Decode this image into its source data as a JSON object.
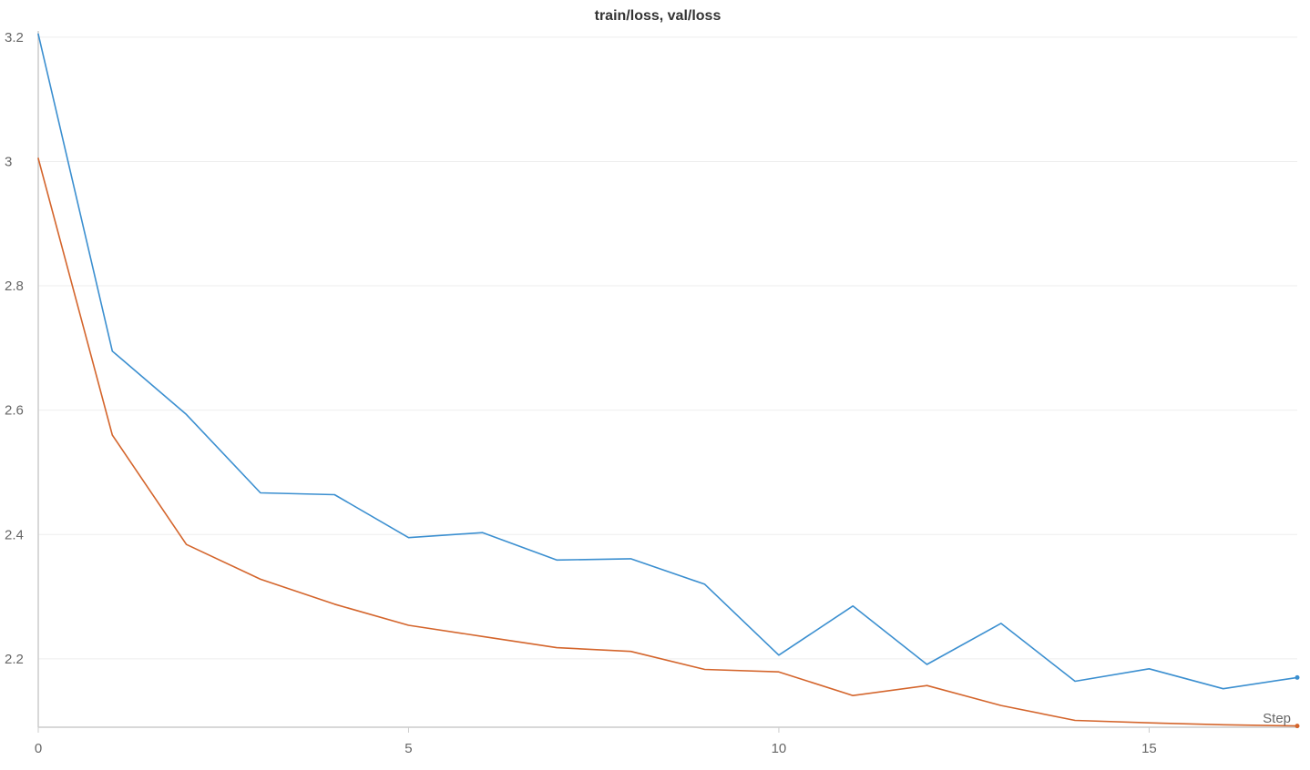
{
  "chart_data": {
    "type": "line",
    "title": "train/loss, val/loss",
    "xlabel": "Step",
    "ylabel": "",
    "xlim": [
      0,
      17
    ],
    "ylim": [
      2.09,
      3.21
    ],
    "x_ticks": [
      0,
      5,
      10,
      15
    ],
    "y_ticks": [
      2.2,
      2.4,
      2.6,
      2.8,
      3,
      3.2
    ],
    "grid": true,
    "x": [
      0,
      1,
      2,
      3,
      4,
      5,
      6,
      7,
      8,
      9,
      10,
      11,
      12,
      13,
      14,
      15,
      16,
      17
    ],
    "series": [
      {
        "color": "#3b8fd0",
        "values": [
          3.205,
          2.695,
          2.593,
          2.467,
          2.464,
          2.395,
          2.403,
          2.359,
          2.361,
          2.32,
          2.206,
          2.285,
          2.191,
          2.257,
          2.164,
          2.184,
          2.152,
          2.17
        ]
      },
      {
        "color": "#d4652c",
        "values": [
          3.005,
          2.56,
          2.384,
          2.328,
          2.288,
          2.254,
          2.236,
          2.218,
          2.212,
          2.183,
          2.179,
          2.141,
          2.157,
          2.125,
          2.101,
          2.097,
          2.094,
          2.092
        ]
      }
    ]
  }
}
